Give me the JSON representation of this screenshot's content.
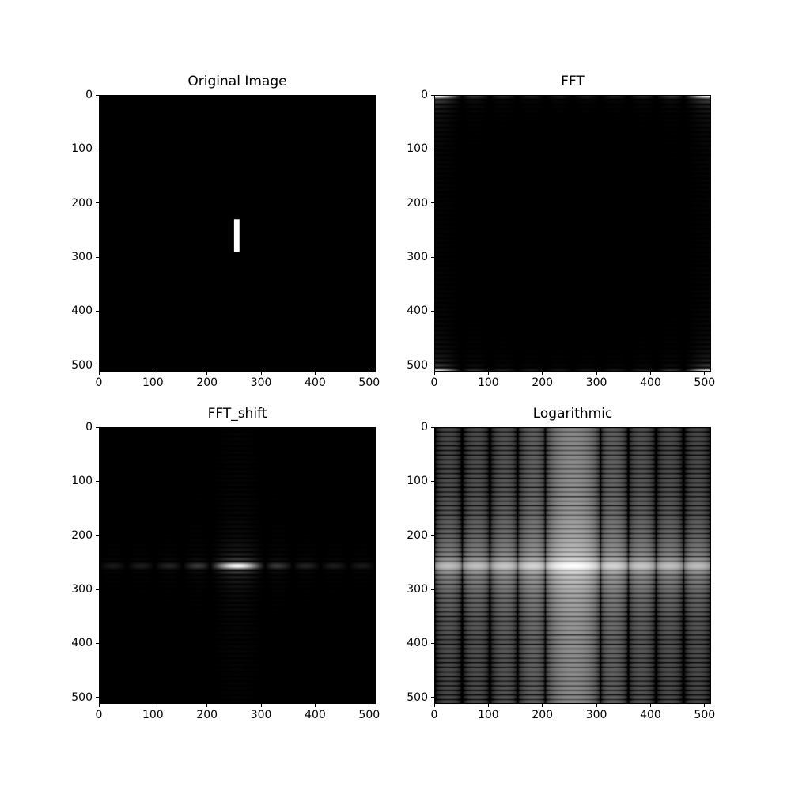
{
  "figure": {
    "background_color": "#ffffff",
    "text_color": "#000000",
    "colormap": "gray",
    "image_size": 512,
    "source_rect": {
      "row_start": 230,
      "row_end": 290,
      "col_start": 250,
      "col_end": 260,
      "value": 255
    },
    "log_display_range": 9
  },
  "chart_data": [
    {
      "type": "heatmap",
      "title": "Original Image",
      "render": "original",
      "content": "black 512x512 image with a white vertical bar at rows 230-290, cols 250-260",
      "xlim": [
        0,
        512
      ],
      "ylim": [
        512,
        0
      ],
      "xticks": [
        0,
        100,
        200,
        300,
        400,
        500
      ],
      "yticks": [
        0,
        100,
        200,
        300,
        400,
        500
      ],
      "grid": false,
      "legend": null
    },
    {
      "type": "heatmap",
      "title": "FFT",
      "render": "fft",
      "content": "linear FFT magnitude, unshifted: bright sinc lobes at the four corners, faint horizontal stripes along top/bottom edges and faint vertical bands",
      "xlim": [
        0,
        512
      ],
      "ylim": [
        512,
        0
      ],
      "xticks": [
        0,
        100,
        200,
        300,
        400,
        500
      ],
      "yticks": [
        0,
        100,
        200,
        300,
        400,
        500
      ],
      "grid": false,
      "legend": null
    },
    {
      "type": "heatmap",
      "title": "FFT_shift",
      "render": "fft_shift",
      "content": "linear FFT magnitude, zero-frequency shifted to center: bright blob at center (256,256) with a row of dim horizontal dashes across the middle",
      "xlim": [
        0,
        512
      ],
      "ylim": [
        512,
        0
      ],
      "xticks": [
        0,
        100,
        200,
        300,
        400,
        500
      ],
      "yticks": [
        0,
        100,
        200,
        300,
        400,
        500
      ],
      "grid": false,
      "legend": null
    },
    {
      "type": "heatmap",
      "title": "Logarithmic",
      "render": "log",
      "content": "log magnitude spectrum: full plaid pattern of vertical bands (period ~51 px) and fine horizontal stripes (period ~8.5 px), with a bright central cross",
      "xlim": [
        0,
        512
      ],
      "ylim": [
        512,
        0
      ],
      "xticks": [
        0,
        100,
        200,
        300,
        400,
        500
      ],
      "yticks": [
        0,
        100,
        200,
        300,
        400,
        500
      ],
      "grid": false,
      "legend": null
    }
  ]
}
